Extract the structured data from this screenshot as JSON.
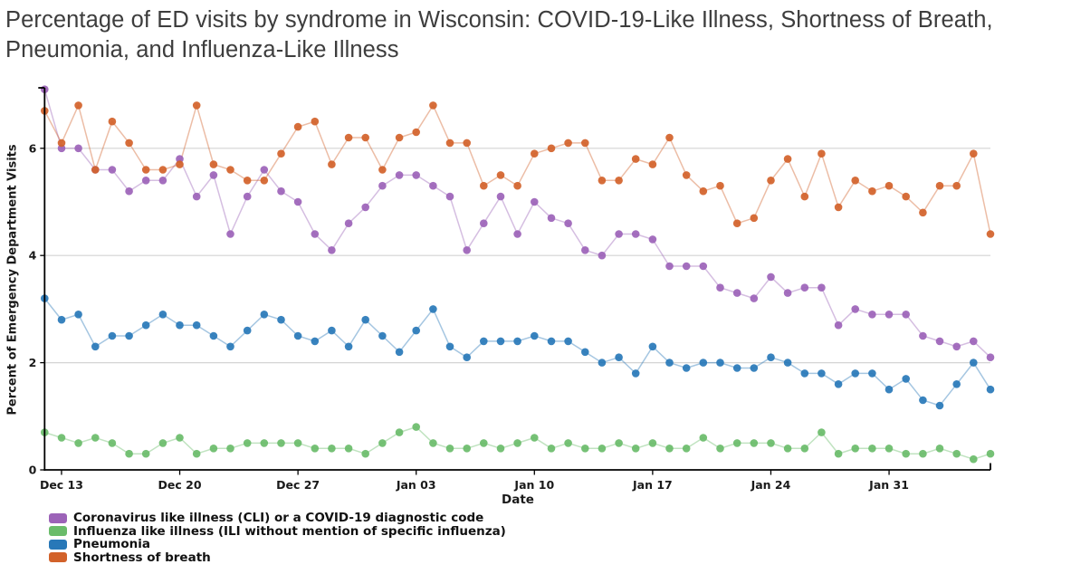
{
  "title": "Percentage of ED visits by syndrome in Wisconsin: COVID-19-Like Illness, Shortness of Breath, Pneumonia, and Influenza-Like Illness",
  "chart_data": {
    "type": "line",
    "title": "Percentage of ED visits by syndrome in Wisconsin: COVID-19-Like Illness, Shortness of Breath, Pneumonia, and Influenza-Like Illness",
    "xlabel": "Date",
    "ylabel": "Percent of Emergency Department Visits",
    "ylim": [
      0,
      7.2
    ],
    "y_ticks": [
      0,
      2,
      4,
      6
    ],
    "grid_y": [
      2,
      4,
      6
    ],
    "grid_color": "#d4d4d4",
    "axis_color": "#000000",
    "legend_position": "bottom-left",
    "x": [
      "Dec 12",
      "Dec 13",
      "Dec 14",
      "Dec 15",
      "Dec 16",
      "Dec 17",
      "Dec 18",
      "Dec 19",
      "Dec 20",
      "Dec 21",
      "Dec 22",
      "Dec 23",
      "Dec 24",
      "Dec 25",
      "Dec 26",
      "Dec 27",
      "Dec 28",
      "Dec 29",
      "Dec 30",
      "Dec 31",
      "Jan 01",
      "Jan 02",
      "Jan 03",
      "Jan 04",
      "Jan 05",
      "Jan 06",
      "Jan 07",
      "Jan 08",
      "Jan 09",
      "Jan 10",
      "Jan 11",
      "Jan 12",
      "Jan 13",
      "Jan 14",
      "Jan 15",
      "Jan 16",
      "Jan 17",
      "Jan 18",
      "Jan 19",
      "Jan 20",
      "Jan 21",
      "Jan 22",
      "Jan 23",
      "Jan 24",
      "Jan 25",
      "Jan 26",
      "Jan 27",
      "Jan 28",
      "Jan 29",
      "Jan 30",
      "Jan 31",
      "Feb 01",
      "Feb 02",
      "Feb 03",
      "Feb 04",
      "Feb 05",
      "Feb 06"
    ],
    "x_tick_indices": [
      1,
      8,
      15,
      22,
      29,
      36,
      43,
      50
    ],
    "x_tick_labels": [
      "Dec 13",
      "Dec 20",
      "Dec 27",
      "Jan 03",
      "Jan 10",
      "Jan 17",
      "Jan 24",
      "Jan 31"
    ],
    "series": [
      {
        "name": "Coronavirus like illness (CLI) or a COVID-19 diagnostic code",
        "slug": "cli",
        "color": "#9c63b8",
        "values": [
          7.1,
          6.0,
          6.0,
          5.6,
          5.6,
          5.2,
          5.4,
          5.4,
          5.8,
          5.1,
          5.5,
          4.4,
          5.1,
          5.6,
          5.2,
          5.0,
          4.4,
          4.1,
          4.6,
          4.9,
          5.3,
          5.5,
          5.5,
          5.3,
          5.1,
          4.1,
          4.6,
          5.1,
          4.4,
          5.0,
          4.7,
          4.6,
          4.1,
          4.0,
          4.4,
          4.4,
          4.3,
          3.8,
          3.8,
          3.8,
          3.4,
          3.3,
          3.2,
          3.6,
          3.3,
          3.4,
          3.4,
          2.7,
          3.0,
          2.9,
          2.9,
          2.9,
          2.5,
          2.4,
          2.3,
          2.4,
          2.1
        ]
      },
      {
        "name": "Influenza like illness (ILI without mention of specific influenza)",
        "slug": "ili",
        "color": "#6abc6a",
        "values": [
          0.7,
          0.6,
          0.5,
          0.6,
          0.5,
          0.3,
          0.3,
          0.5,
          0.6,
          0.3,
          0.4,
          0.4,
          0.5,
          0.5,
          0.5,
          0.5,
          0.4,
          0.4,
          0.4,
          0.3,
          0.5,
          0.7,
          0.8,
          0.5,
          0.4,
          0.4,
          0.5,
          0.4,
          0.5,
          0.6,
          0.4,
          0.5,
          0.4,
          0.4,
          0.5,
          0.4,
          0.5,
          0.4,
          0.4,
          0.6,
          0.4,
          0.5,
          0.5,
          0.5,
          0.4,
          0.4,
          0.7,
          0.3,
          0.4,
          0.4,
          0.4,
          0.3,
          0.3,
          0.4,
          0.3,
          0.2,
          0.3
        ]
      },
      {
        "name": "Pneumonia",
        "slug": "pneumonia",
        "color": "#2878b8",
        "values": [
          3.2,
          2.8,
          2.9,
          2.3,
          2.5,
          2.5,
          2.7,
          2.9,
          2.7,
          2.7,
          2.5,
          2.3,
          2.6,
          2.9,
          2.8,
          2.5,
          2.4,
          2.6,
          2.3,
          2.8,
          2.5,
          2.2,
          2.6,
          3.0,
          2.3,
          2.1,
          2.4,
          2.4,
          2.4,
          2.5,
          2.4,
          2.4,
          2.2,
          2.0,
          2.1,
          1.8,
          2.3,
          2.0,
          1.9,
          2.0,
          2.0,
          1.9,
          1.9,
          2.1,
          2.0,
          1.8,
          1.8,
          1.6,
          1.8,
          1.8,
          1.5,
          1.7,
          1.3,
          1.2,
          1.6,
          2.0,
          1.5
        ]
      },
      {
        "name": "Shortness of breath",
        "slug": "shortness-of-breath",
        "color": "#d2622a",
        "values": [
          6.7,
          6.1,
          6.8,
          5.6,
          6.5,
          6.1,
          5.6,
          5.6,
          5.7,
          6.8,
          5.7,
          5.6,
          5.4,
          5.4,
          5.9,
          6.4,
          6.5,
          5.7,
          6.2,
          6.2,
          5.6,
          6.2,
          6.3,
          6.8,
          6.1,
          6.1,
          5.3,
          5.5,
          5.3,
          5.9,
          6.0,
          6.1,
          6.1,
          5.4,
          5.4,
          5.8,
          5.7,
          6.2,
          5.5,
          5.2,
          5.3,
          4.6,
          4.7,
          5.4,
          5.8,
          5.1,
          5.9,
          4.9,
          5.4,
          5.2,
          5.3,
          5.1,
          4.8,
          5.3,
          5.3,
          5.9,
          4.4
        ]
      }
    ]
  }
}
